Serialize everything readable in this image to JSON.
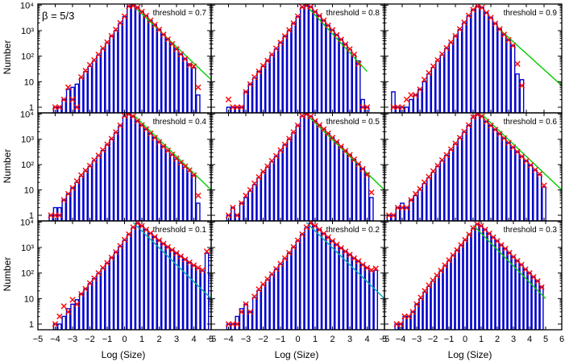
{
  "figure": {
    "beta_label": "β = 5/3",
    "ylabel": "Number",
    "xlabel": "Log (Size)"
  },
  "colors": {
    "histogram": "#0000cc",
    "markers": "#ff0000",
    "fit_line": "#00cc00",
    "fit_line_alt": "#00aaaa",
    "frame": "#000000"
  },
  "axes": {
    "x_ticks_full": [
      "−5",
      "−4",
      "−3",
      "−2",
      "−1",
      "0",
      "1",
      "2",
      "3",
      "4",
      "5"
    ],
    "x_ticks_last": [
      "−5",
      "−4",
      "−3",
      "−2",
      "−1",
      "0",
      "1",
      "2",
      "3",
      "4",
      "5",
      "6"
    ],
    "y_ticks": [
      "1",
      "10",
      "10²",
      "10³",
      "10⁴"
    ],
    "y_tick_values": [
      1,
      10,
      100,
      1000,
      10000
    ]
  },
  "chart_data": [
    {
      "type": "bar",
      "title": "threshold = 0.7",
      "xlim": [
        -5,
        5
      ],
      "ylim": [
        0.6,
        11000
      ],
      "yscale": "log",
      "x": [
        -4,
        -3.75,
        -3.5,
        -3.25,
        -3,
        -2.75,
        -2.5,
        -2.25,
        -2,
        -1.75,
        -1.5,
        -1.25,
        -1,
        -0.75,
        -0.5,
        -0.25,
        0,
        0.25,
        0.5,
        0.75,
        1,
        1.25,
        1.5,
        1.75,
        2,
        2.25,
        2.5,
        2.75,
        3,
        3.25,
        3.5,
        3.75,
        4,
        4.25
      ],
      "counts": [
        1,
        1,
        2,
        5,
        6,
        8,
        14,
        25,
        40,
        65,
        110,
        190,
        330,
        600,
        1000,
        1900,
        3500,
        9000,
        10000,
        8000,
        5500,
        3800,
        2500,
        1700,
        1100,
        700,
        460,
        300,
        190,
        120,
        78,
        50,
        35,
        3
      ],
      "markers": [
        1,
        1,
        2,
        6,
        2,
        1,
        15,
        27,
        45,
        70,
        115,
        200,
        350,
        620,
        1100,
        2000,
        3600,
        9000,
        9500,
        8000,
        5500,
        3800,
        2500,
        1700,
        1100,
        700,
        460,
        300,
        190,
        120,
        78,
        45,
        40,
        6
      ],
      "fit": {
        "x": [
          0.5,
          5
        ],
        "y": [
          9500,
          12
        ]
      }
    },
    {
      "type": "bar",
      "title": "threshold = 0.8",
      "xlim": [
        -5,
        5
      ],
      "ylim": [
        0.6,
        11000
      ],
      "yscale": "log",
      "x": [
        -4,
        -3.75,
        -3.5,
        -3.25,
        -3,
        -2.75,
        -2.5,
        -2.25,
        -2,
        -1.75,
        -1.5,
        -1.25,
        -1,
        -0.75,
        -0.5,
        -0.25,
        0,
        0.25,
        0.5,
        0.75,
        1,
        1.25,
        1.5,
        1.75,
        2,
        2.25,
        2.5,
        2.75,
        3,
        3.25,
        3.5,
        3.75,
        4
      ],
      "counts": [
        1,
        1,
        1,
        1,
        4,
        8,
        14,
        25,
        40,
        65,
        110,
        190,
        330,
        600,
        1000,
        1900,
        3500,
        8000,
        10000,
        8500,
        5500,
        3800,
        2500,
        1600,
        1050,
        680,
        450,
        290,
        180,
        110,
        65,
        2,
        1
      ],
      "markers": [
        2,
        1,
        1,
        1,
        4,
        8,
        15,
        25,
        42,
        67,
        115,
        200,
        340,
        610,
        1050,
        1950,
        3600,
        8500,
        9500,
        8500,
        5500,
        3800,
        2500,
        1600,
        1050,
        680,
        450,
        290,
        190,
        115,
        50,
        1,
        1
      ],
      "fit": {
        "x": [
          0.5,
          4
        ],
        "y": [
          9500,
          25
        ]
      }
    },
    {
      "type": "bar",
      "title": "threshold = 0.9",
      "xlim": [
        -5,
        5
      ],
      "ylim": [
        0.6,
        11000
      ],
      "yscale": "log",
      "x": [
        -4.5,
        -4.25,
        -4,
        -3.75,
        -3.5,
        -3.25,
        -3,
        -2.75,
        -2.5,
        -2.25,
        -2,
        -1.75,
        -1.5,
        -1.25,
        -1,
        -0.75,
        -0.5,
        -0.25,
        0,
        0.25,
        0.5,
        0.75,
        1,
        1.25,
        1.5,
        1.75,
        2,
        2.25,
        2.5,
        2.75
      ],
      "counts": [
        4,
        1,
        1,
        1,
        2,
        3,
        5,
        10,
        20,
        36,
        65,
        110,
        200,
        330,
        600,
        1100,
        2000,
        3800,
        6500,
        9000,
        8000,
        5000,
        3200,
        1900,
        1150,
        700,
        430,
        260,
        20,
        12
      ],
      "markers": [
        1,
        1,
        1,
        2,
        3,
        3,
        5,
        12,
        22,
        40,
        70,
        120,
        210,
        350,
        620,
        1150,
        2100,
        3900,
        6600,
        9000,
        8000,
        5000,
        3200,
        1900,
        1150,
        700,
        430,
        260,
        50,
        7
      ],
      "fit": {
        "x": [
          1.5,
          5
        ],
        "y": [
          1100,
          7
        ]
      }
    },
    {
      "type": "bar",
      "title": "threshold = 0.4",
      "xlim": [
        -5,
        5
      ],
      "ylim": [
        0.6,
        11000
      ],
      "yscale": "log",
      "x": [
        -4.25,
        -4,
        -3.75,
        -3.5,
        -3.25,
        -3,
        -2.75,
        -2.5,
        -2.25,
        -2,
        -1.75,
        -1.5,
        -1.25,
        -1,
        -0.75,
        -0.5,
        -0.25,
        0,
        0.25,
        0.5,
        0.75,
        1,
        1.25,
        1.5,
        1.75,
        2,
        2.25,
        2.5,
        2.75,
        3,
        3.25,
        3.5,
        3.75,
        4,
        4.25
      ],
      "counts": [
        1,
        2,
        2,
        4,
        7,
        12,
        20,
        35,
        55,
        85,
        140,
        220,
        360,
        600,
        1000,
        1800,
        3400,
        8000,
        10000,
        8000,
        5200,
        3600,
        2500,
        1700,
        1150,
        780,
        520,
        350,
        240,
        165,
        115,
        80,
        55,
        37,
        3
      ],
      "markers": [
        1,
        1,
        1,
        4,
        7,
        12,
        22,
        38,
        58,
        90,
        150,
        230,
        380,
        630,
        1050,
        1900,
        3500,
        8500,
        9800,
        8000,
        5200,
        3600,
        2500,
        1700,
        1150,
        780,
        520,
        360,
        250,
        175,
        120,
        85,
        60,
        38,
        6
      ],
      "fit": {
        "x": [
          0.5,
          5
        ],
        "y": [
          9500,
          10
        ]
      }
    },
    {
      "type": "bar",
      "title": "threshold = 0.5",
      "xlim": [
        -5,
        5
      ],
      "ylim": [
        0.6,
        11000
      ],
      "yscale": "log",
      "x": [
        -4,
        -3.75,
        -3.5,
        -3.25,
        -3,
        -2.75,
        -2.5,
        -2.25,
        -2,
        -1.75,
        -1.5,
        -1.25,
        -1,
        -0.75,
        -0.5,
        -0.25,
        0,
        0.25,
        0.5,
        0.75,
        1,
        1.25,
        1.5,
        1.75,
        2,
        2.25,
        2.5,
        2.75,
        3,
        3.25,
        3.5,
        3.75,
        4,
        4.25
      ],
      "counts": [
        1,
        2,
        1,
        3,
        5,
        9,
        16,
        30,
        50,
        80,
        130,
        210,
        350,
        600,
        1000,
        1800,
        3400,
        8000,
        10000,
        8000,
        5200,
        3600,
        2500,
        1700,
        1150,
        780,
        520,
        350,
        240,
        160,
        105,
        70,
        45,
        5
      ],
      "markers": [
        1,
        2,
        1,
        3,
        6,
        10,
        18,
        32,
        52,
        85,
        140,
        220,
        370,
        620,
        1050,
        1900,
        3500,
        8500,
        9800,
        8000,
        5200,
        3600,
        2500,
        1700,
        1150,
        780,
        520,
        350,
        240,
        160,
        105,
        68,
        40,
        8
      ],
      "fit": {
        "x": [
          0.5,
          5
        ],
        "y": [
          9500,
          10
        ]
      }
    },
    {
      "type": "bar",
      "title": "threshold = 0.6",
      "xlim": [
        -5,
        5
      ],
      "ylim": [
        0.6,
        11000
      ],
      "yscale": "log",
      "x": [
        -4.75,
        -4.5,
        -4.25,
        -4,
        -3.75,
        -3.5,
        -3.25,
        -3,
        -2.75,
        -2.5,
        -2.25,
        -2,
        -1.75,
        -1.5,
        -1.25,
        -1,
        -0.75,
        -0.5,
        -0.25,
        0,
        0.25,
        0.5,
        0.75,
        1,
        1.25,
        1.5,
        1.75,
        2,
        2.25,
        2.5,
        2.75,
        3,
        3.25,
        3.5,
        3.75,
        4
      ],
      "counts": [
        1,
        1,
        2,
        3,
        2,
        4,
        6,
        10,
        18,
        30,
        50,
        85,
        140,
        230,
        380,
        650,
        1100,
        1900,
        3500,
        7000,
        9500,
        8000,
        5000,
        3500,
        2400,
        1650,
        1100,
        730,
        480,
        320,
        210,
        140,
        95,
        60,
        40,
        13
      ],
      "markers": [
        1,
        1,
        2,
        2,
        2,
        4,
        7,
        11,
        20,
        33,
        55,
        90,
        150,
        240,
        400,
        680,
        1150,
        2000,
        3600,
        7500,
        9500,
        8000,
        5000,
        3500,
        2400,
        1650,
        1100,
        730,
        480,
        320,
        210,
        140,
        95,
        62,
        42,
        15
      ],
      "fit": {
        "x": [
          0.5,
          5
        ],
        "y": [
          9500,
          10
        ]
      }
    },
    {
      "type": "bar",
      "title": "threshold = 0.1",
      "xlim": [
        -5,
        5
      ],
      "ylim": [
        0.6,
        11000
      ],
      "yscale": "log",
      "x": [
        -4,
        -3.75,
        -3.5,
        -3.25,
        -3,
        -2.75,
        -2.5,
        -2.25,
        -2,
        -1.75,
        -1.5,
        -1.25,
        -1,
        -0.75,
        -0.5,
        -0.25,
        0,
        0.25,
        0.5,
        0.75,
        1,
        1.25,
        1.5,
        1.75,
        2,
        2.25,
        2.5,
        2.75,
        3,
        3.25,
        3.5,
        3.75,
        4,
        4.25,
        4.5,
        4.75
      ],
      "counts": [
        1,
        1,
        2,
        4,
        6,
        9,
        15,
        24,
        38,
        60,
        95,
        150,
        240,
        390,
        640,
        1100,
        1900,
        3200,
        6000,
        9000,
        7000,
        5000,
        3600,
        2600,
        1900,
        1400,
        1050,
        800,
        600,
        450,
        340,
        260,
        200,
        150,
        120,
        600
      ],
      "markers": [
        1,
        2,
        5,
        3,
        9,
        6,
        15,
        24,
        40,
        62,
        100,
        160,
        250,
        400,
        660,
        1150,
        2000,
        3300,
        6200,
        9000,
        7000,
        5000,
        3600,
        2600,
        1900,
        1400,
        1050,
        800,
        600,
        450,
        340,
        260,
        200,
        160,
        130,
        700
      ],
      "fit": {
        "x": [
          0.5,
          5
        ],
        "y": [
          9500,
          10
        ]
      }
    },
    {
      "type": "bar",
      "title": "threshold = 0.2",
      "xlim": [
        -5,
        5
      ],
      "ylim": [
        0.6,
        11000
      ],
      "yscale": "log",
      "x": [
        -4,
        -3.75,
        -3.5,
        -3.25,
        -3,
        -2.75,
        -2.5,
        -2.25,
        -2,
        -1.75,
        -1.5,
        -1.25,
        -1,
        -0.75,
        -0.5,
        -0.25,
        0,
        0.25,
        0.5,
        0.75,
        1,
        1.25,
        1.5,
        1.75,
        2,
        2.25,
        2.5,
        2.75,
        3,
        3.25,
        3.5,
        3.75,
        4,
        4.25,
        4.5
      ],
      "counts": [
        1,
        1,
        2,
        4,
        6,
        3,
        11,
        21,
        34,
        54,
        85,
        140,
        220,
        360,
        600,
        1000,
        1800,
        3200,
        6000,
        9000,
        7000,
        5000,
        3500,
        2500,
        1800,
        1300,
        950,
        700,
        520,
        380,
        290,
        210,
        160,
        120,
        130
      ],
      "markers": [
        1,
        1,
        1,
        3,
        6,
        3,
        12,
        23,
        36,
        58,
        90,
        145,
        230,
        380,
        620,
        1050,
        1900,
        3300,
        6200,
        9000,
        7000,
        5000,
        3500,
        2500,
        1800,
        1300,
        950,
        700,
        520,
        380,
        290,
        210,
        160,
        130,
        150
      ],
      "fit": {
        "x": [
          0.5,
          5
        ],
        "y": [
          9500,
          10
        ]
      }
    },
    {
      "type": "bar",
      "title": "threshold = 0.3",
      "xlim": [
        -5,
        6
      ],
      "ylim": [
        0.6,
        11000
      ],
      "yscale": "log",
      "x": [
        -4.25,
        -4,
        -3.75,
        -3.5,
        -3.25,
        -3,
        -2.75,
        -2.5,
        -2.25,
        -2,
        -1.75,
        -1.5,
        -1.25,
        -1,
        -0.75,
        -0.5,
        -0.25,
        0,
        0.25,
        0.5,
        0.75,
        1,
        1.25,
        1.5,
        1.75,
        2,
        2.25,
        2.5,
        2.75,
        3,
        3.25,
        3.5,
        3.75,
        4,
        4.25,
        4.5,
        4.75
      ],
      "counts": [
        1,
        1,
        2,
        2,
        3,
        6,
        10,
        18,
        30,
        48,
        75,
        120,
        190,
        300,
        480,
        760,
        1200,
        1900,
        3100,
        5500,
        8000,
        7000,
        5000,
        3500,
        2500,
        1800,
        1250,
        900,
        620,
        430,
        300,
        210,
        140,
        100,
        70,
        50,
        30
      ],
      "markers": [
        1,
        1,
        2,
        2,
        3,
        6,
        11,
        20,
        33,
        52,
        80,
        125,
        200,
        320,
        500,
        790,
        1250,
        2000,
        3200,
        5700,
        8200,
        7000,
        5000,
        3500,
        2500,
        1800,
        1250,
        900,
        620,
        430,
        300,
        210,
        140,
        100,
        70,
        48,
        28
      ],
      "fit": {
        "x": [
          0.5,
          5
        ],
        "y": [
          7500,
          10
        ]
      }
    }
  ]
}
